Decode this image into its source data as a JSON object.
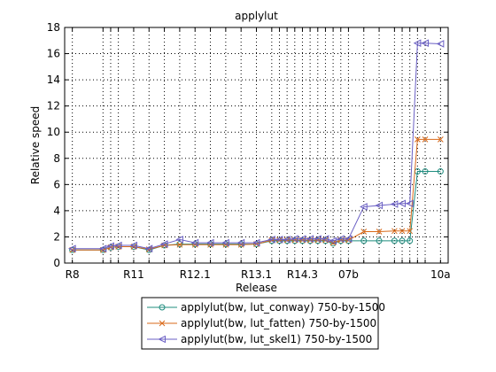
{
  "chart_data": {
    "type": "line",
    "title": "applylut",
    "xlabel": "Release",
    "ylabel": "Relative speed",
    "ylim": [
      0,
      18
    ],
    "yticks": [
      0,
      2,
      4,
      6,
      8,
      10,
      12,
      14,
      16,
      18
    ],
    "grid": true,
    "grid_style": "dotted",
    "legend_position": "bottom-right, below plot",
    "x_tick_labels": [
      "R8",
      "R11",
      "R12.1",
      "R13.1",
      "R14.3",
      "07b",
      "10a"
    ],
    "x_tick_positions": [
      1,
      5,
      9,
      13,
      16,
      19,
      25
    ],
    "x_grid_positions": [
      1,
      3,
      3.5,
      4,
      5,
      6,
      7,
      8,
      9,
      10,
      11,
      12,
      13,
      14,
      14.5,
      15,
      15.5,
      16,
      16.5,
      17,
      17.5,
      18,
      18.5,
      19,
      20,
      21,
      22,
      22.5,
      23,
      23.5,
      24,
      25
    ],
    "x": [
      1,
      3,
      3.5,
      4,
      5,
      6,
      7,
      8,
      9,
      10,
      11,
      12,
      13,
      14,
      14.5,
      15,
      15.5,
      16,
      16.5,
      17,
      17.5,
      18,
      18.5,
      19,
      20,
      21,
      22,
      22.5,
      23,
      23.5,
      24,
      25
    ],
    "xlim": [
      0.5,
      25.5
    ],
    "series": [
      {
        "name": "applylut(bw, lut_conway) 750-by-1500",
        "color": "#1f8c7e",
        "marker": "circle",
        "values": [
          1.0,
          1.0,
          1.2,
          1.25,
          1.25,
          1.0,
          1.35,
          1.45,
          1.45,
          1.45,
          1.45,
          1.45,
          1.45,
          1.7,
          1.7,
          1.7,
          1.7,
          1.7,
          1.7,
          1.7,
          1.7,
          1.5,
          1.7,
          1.7,
          1.7,
          1.7,
          1.7,
          1.7,
          1.7,
          7.0,
          7.0,
          7.0
        ]
      },
      {
        "name": "applylut(bw, lut_fatten)  750-by-1500",
        "color": "#d96a1a",
        "marker": "x",
        "values": [
          1.0,
          1.0,
          1.2,
          1.25,
          1.25,
          1.05,
          1.35,
          1.4,
          1.4,
          1.4,
          1.4,
          1.4,
          1.45,
          1.75,
          1.75,
          1.75,
          1.75,
          1.75,
          1.75,
          1.75,
          1.75,
          1.55,
          1.75,
          1.75,
          2.4,
          2.4,
          2.45,
          2.45,
          2.45,
          9.45,
          9.45,
          9.45
        ]
      },
      {
        "name": "applylut(bw, lut_skel1)  750-by-1500",
        "color": "#6a5fc4",
        "marker": "triangle-left",
        "values": [
          1.1,
          1.1,
          1.3,
          1.35,
          1.35,
          1.1,
          1.45,
          1.8,
          1.55,
          1.55,
          1.55,
          1.55,
          1.55,
          1.8,
          1.8,
          1.8,
          1.85,
          1.85,
          1.85,
          1.85,
          1.85,
          1.7,
          1.85,
          1.85,
          4.3,
          4.4,
          4.5,
          4.55,
          4.55,
          16.8,
          16.8,
          16.75
        ]
      }
    ]
  }
}
